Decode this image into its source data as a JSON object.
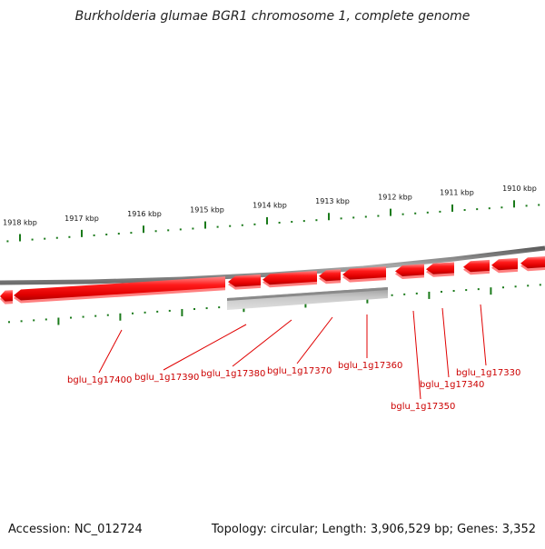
{
  "title": "Burkholderia glumae BGR1 chromosome 1, complete genome",
  "footer": {
    "accession": "Accession: NC_012724",
    "summary": "Topology: circular; Length: 3,906,529 bp; Genes: 3,352"
  },
  "colors": {
    "forward_gene": "#ff0000",
    "reverse_gene": "#bbbbbb",
    "backbone": "#7a7a7a",
    "ticks": "#1a7a1a",
    "gene_label": "#cc0000",
    "kbp_label": "#111111"
  },
  "scale": {
    "unit": "kbp",
    "major_ticks": [
      {
        "label": "1918 kbp"
      },
      {
        "label": "1917 kbp"
      },
      {
        "label": "1916 kbp"
      },
      {
        "label": "1915 kbp"
      },
      {
        "label": "1914 kbp"
      },
      {
        "label": "1913 kbp"
      },
      {
        "label": "1912 kbp"
      },
      {
        "label": "1911 kbp"
      },
      {
        "label": "1910 kbp"
      }
    ]
  },
  "genes": [
    {
      "label": "bglu_1g17400"
    },
    {
      "label": "bglu_1g17390"
    },
    {
      "label": "bglu_1g17380"
    },
    {
      "label": "bglu_1g17370"
    },
    {
      "label": "bglu_1g17360"
    },
    {
      "label": "bglu_1g17350"
    },
    {
      "label": "bglu_1g17340"
    },
    {
      "label": "bglu_1g17330"
    }
  ]
}
